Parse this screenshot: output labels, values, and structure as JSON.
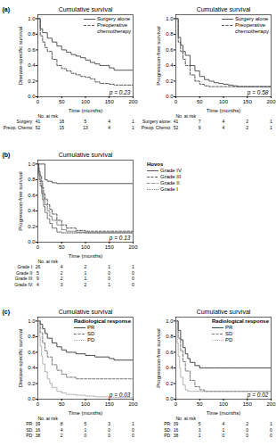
{
  "chart_data": [
    {
      "type": "step",
      "panel_label": "(a)",
      "title": "Cumulative survival",
      "xlabel": "Time (months)",
      "ylabel": "Disease-specific survival",
      "xlim": [
        0,
        200
      ],
      "xticks": [
        0,
        50,
        100,
        150,
        200
      ],
      "ylim": [
        0,
        1.05
      ],
      "yticks": [
        {
          "value": 0,
          "label": "0.0"
        },
        0.2,
        0.4,
        0.6,
        0.8,
        {
          "value": 1,
          "label": "1.0"
        }
      ],
      "grid": false,
      "legend": "upper right",
      "annotation": "p = 0.23",
      "series": [
        {
          "name": "Surgery alone",
          "color": "#444444",
          "line_style": "solid",
          "x": [
            0,
            5,
            10,
            20,
            30,
            40,
            50,
            60,
            70,
            80,
            90,
            100,
            110,
            120,
            130,
            150,
            160,
            200
          ],
          "values": [
            1.0,
            0.87,
            0.82,
            0.75,
            0.7,
            0.65,
            0.6,
            0.57,
            0.54,
            0.52,
            0.5,
            0.47,
            0.44,
            0.42,
            0.4,
            0.37,
            0.34,
            0.26
          ]
        },
        {
          "name": "Preoperative\nchemotherapy",
          "color": "#444444",
          "line_style": "dashed",
          "x": [
            0,
            5,
            10,
            15,
            20,
            30,
            40,
            50,
            60,
            70,
            80,
            90,
            100,
            110,
            120,
            130,
            150,
            160,
            200
          ],
          "values": [
            1.0,
            0.78,
            0.7,
            0.63,
            0.58,
            0.48,
            0.4,
            0.36,
            0.33,
            0.3,
            0.28,
            0.26,
            0.25,
            0.23,
            0.19,
            0.17,
            0.16,
            0.15,
            0.14
          ]
        }
      ],
      "at_risk": {
        "title": "No. at risk",
        "times": [
          0,
          50,
          100,
          150,
          200
        ],
        "rows": [
          {
            "name": "Surgery:",
            "values": [
              41,
              18,
              5,
              4,
              1
            ]
          },
          {
            "name": "Preop. Chemo:",
            "values": [
              52,
              15,
              13,
              4,
              1
            ]
          }
        ]
      }
    },
    {
      "type": "step",
      "title": "Cumulative survival",
      "xlabel": "Time (months)",
      "ylabel": "Progression-free survival",
      "xlim": [
        0,
        200
      ],
      "xticks": [
        0,
        50,
        100,
        150,
        200
      ],
      "ylim": [
        0,
        1.05
      ],
      "yticks": [
        {
          "value": 0,
          "label": "0.0"
        },
        0.2,
        0.4,
        0.6,
        0.8,
        {
          "value": 1,
          "label": "1.0"
        }
      ],
      "grid": false,
      "legend": "upper right",
      "annotation": "p = 0.58",
      "series": [
        {
          "name": "Surgery alone",
          "color": "#444444",
          "line_style": "solid",
          "x": [
            0,
            5,
            10,
            15,
            20,
            30,
            40,
            50,
            60,
            70,
            80,
            90,
            100,
            110,
            120,
            130,
            150,
            200
          ],
          "values": [
            1.0,
            0.76,
            0.66,
            0.58,
            0.53,
            0.4,
            0.33,
            0.26,
            0.22,
            0.2,
            0.18,
            0.17,
            0.16,
            0.15,
            0.14,
            0.13,
            0.13,
            0.12
          ]
        },
        {
          "name": "Preoperative\nchemotherapy",
          "color": "#444444",
          "line_style": "dashed",
          "x": [
            0,
            5,
            10,
            15,
            20,
            30,
            40,
            50,
            60,
            70,
            80,
            90,
            100,
            110,
            130,
            150,
            200
          ],
          "values": [
            1.0,
            0.7,
            0.58,
            0.48,
            0.4,
            0.28,
            0.2,
            0.16,
            0.14,
            0.13,
            0.13,
            0.13,
            0.13,
            0.13,
            0.13,
            0.13,
            0.13
          ]
        }
      ],
      "at_risk": {
        "title": "No. at risk",
        "times": [
          0,
          50,
          100,
          150,
          200
        ],
        "rows": [
          {
            "name": "Surgery alone:",
            "values": [
              41,
              7,
              4,
              2,
              1
            ]
          },
          {
            "name": "Preop. Chemo:",
            "values": [
              52,
              9,
              4,
              2,
              1
            ]
          }
        ]
      }
    },
    {
      "type": "step",
      "panel_label": "(b)",
      "title": "Cumulative survival",
      "xlabel": "Time (months)",
      "ylabel": "Progression-free survival",
      "xlim": [
        0,
        200
      ],
      "xticks": [
        0,
        50,
        100,
        150,
        200
      ],
      "ylim": [
        0,
        1.05
      ],
      "yticks": [
        {
          "value": 0,
          "label": "0.0"
        },
        0.2,
        0.4,
        0.6,
        0.8,
        {
          "value": 1,
          "label": "1.0"
        }
      ],
      "grid": false,
      "legend": "right",
      "legend_title": "Huvos",
      "annotation": "p = 0.13",
      "series": [
        {
          "name": "Grade IV",
          "color": "#444444",
          "line_style": "solid",
          "x": [
            0,
            3,
            5,
            10,
            15,
            20,
            30,
            40,
            50,
            100,
            150,
            200
          ],
          "values": [
            1.0,
            1.0,
            1.0,
            1.0,
            0.8,
            0.78,
            0.76,
            0.75,
            0.75,
            0.75,
            0.75,
            0.75
          ]
        },
        {
          "name": "Grade III",
          "color": "#444444",
          "line_style": "dashed",
          "x": [
            0,
            2,
            3,
            5,
            8,
            10,
            12,
            15,
            20,
            25,
            30,
            40,
            50,
            60,
            80,
            100,
            120,
            150,
            200
          ],
          "values": [
            1.0,
            0.95,
            0.9,
            0.85,
            0.78,
            0.7,
            0.62,
            0.55,
            0.48,
            0.42,
            0.36,
            0.28,
            0.22,
            0.18,
            0.15,
            0.14,
            0.14,
            0.14,
            0.14
          ]
        },
        {
          "name": "Grade II",
          "color": "#777777",
          "line_style": "dashdot",
          "x": [
            0,
            2,
            3,
            5,
            8,
            10,
            12,
            15,
            20,
            25,
            30,
            40,
            50,
            60,
            80,
            100,
            120,
            150,
            200
          ],
          "values": [
            1.0,
            0.92,
            0.85,
            0.78,
            0.7,
            0.62,
            0.55,
            0.48,
            0.4,
            0.33,
            0.28,
            0.22,
            0.16,
            0.14,
            0.13,
            0.12,
            0.12,
            0.12,
            0.12
          ]
        },
        {
          "name": "Grade I",
          "color": "#444444",
          "line_style": "dotted",
          "x": [
            0,
            2,
            3,
            5,
            8,
            10,
            12,
            15,
            20,
            25,
            30,
            40,
            50,
            60,
            80,
            100,
            120,
            150,
            200
          ],
          "values": [
            1.0,
            0.88,
            0.8,
            0.72,
            0.62,
            0.54,
            0.46,
            0.38,
            0.3,
            0.24,
            0.18,
            0.13,
            0.12,
            0.12,
            0.12,
            0.12,
            0.12,
            0.12,
            0.12
          ]
        }
      ],
      "at_risk": {
        "title": "No. at risk",
        "times": [
          0,
          50,
          100,
          150,
          200
        ],
        "rows": [
          {
            "name": "Grade I:",
            "values": [
              26,
              4,
              2,
              1,
              1
            ]
          },
          {
            "name": "Grade II:",
            "values": [
              5,
              2,
              1,
              0,
              0
            ]
          },
          {
            "name": "Grade III:",
            "values": [
              9,
              2,
              1,
              0,
              0
            ]
          },
          {
            "name": "Grade IV:",
            "values": [
              4,
              3,
              2,
              1,
              0
            ]
          }
        ]
      }
    },
    {
      "type": "step",
      "panel_label": "(c)",
      "title": "Cumulative survival",
      "xlabel": "Time (months)",
      "ylabel": "Disease-specific survival",
      "xlim": [
        0,
        200
      ],
      "xticks": [
        0,
        50,
        100,
        150,
        200
      ],
      "ylim": [
        0,
        1.05
      ],
      "yticks": [
        {
          "value": 0,
          "label": "0.0"
        },
        0.2,
        0.4,
        0.6,
        0.8,
        {
          "value": 1,
          "label": "1.0"
        }
      ],
      "grid": false,
      "legend": "upper right",
      "legend_title": "Radiological response",
      "annotation": "p = 0.03",
      "series": [
        {
          "name": "PR",
          "color": "#333333",
          "line_style": "solid",
          "x": [
            0,
            5,
            10,
            15,
            20,
            30,
            40,
            50,
            60,
            80,
            100,
            120,
            150,
            160,
            200
          ],
          "values": [
            1.0,
            0.96,
            0.9,
            0.84,
            0.78,
            0.72,
            0.67,
            0.63,
            0.6,
            0.58,
            0.56,
            0.54,
            0.52,
            0.5,
            0.5
          ]
        },
        {
          "name": "SD",
          "color": "#666666",
          "line_style": "dashed",
          "x": [
            0,
            5,
            10,
            15,
            20,
            30,
            40,
            50,
            60,
            80,
            100,
            120,
            150,
            200
          ],
          "values": [
            1.0,
            0.85,
            0.72,
            0.62,
            0.54,
            0.44,
            0.37,
            0.32,
            0.28,
            0.26,
            0.26,
            0.26,
            0.26,
            0.26
          ]
        },
        {
          "name": "PD",
          "color": "#999999",
          "line_style": "dotted",
          "x": [
            0,
            3,
            5,
            8,
            10,
            15,
            20,
            25,
            30,
            40,
            50,
            60,
            80,
            100,
            120,
            150,
            200
          ],
          "values": [
            1.0,
            0.8,
            0.68,
            0.55,
            0.45,
            0.35,
            0.26,
            0.2,
            0.15,
            0.1,
            0.08,
            0.06,
            0.05,
            0.04,
            0.03,
            0.02,
            0.02
          ]
        }
      ],
      "at_risk": {
        "title": "No. at risk",
        "times": [
          0,
          50,
          100,
          150,
          200
        ],
        "rows": [
          {
            "name": "PR:",
            "values": [
              39,
              8,
              5,
              3,
              1
            ]
          },
          {
            "name": "SD:",
            "values": [
              16,
              4,
              1,
              0,
              0
            ]
          },
          {
            "name": "PD:",
            "values": [
              38,
              2,
              0,
              0,
              0
            ]
          }
        ]
      }
    },
    {
      "type": "step",
      "title": "Cumulative survival",
      "xlabel": "Time (months)",
      "ylabel": "Progression-free survival",
      "xlim": [
        0,
        200
      ],
      "xticks": [
        0,
        50,
        100,
        150,
        200
      ],
      "ylim": [
        0,
        1.05
      ],
      "yticks": [
        {
          "value": 0,
          "label": "0.0"
        },
        0.2,
        0.4,
        0.6,
        0.8,
        {
          "value": 1,
          "label": "1.0"
        }
      ],
      "grid": false,
      "legend": "upper right",
      "legend_title": "Radiological response",
      "annotation": "p = 0.02",
      "series": [
        {
          "name": "PR",
          "color": "#333333",
          "line_style": "solid",
          "x": [
            0,
            5,
            10,
            15,
            20,
            25,
            30,
            40,
            50,
            60,
            80,
            100,
            120,
            150,
            200
          ],
          "values": [
            1.0,
            0.88,
            0.76,
            0.66,
            0.58,
            0.52,
            0.47,
            0.43,
            0.4,
            0.4,
            0.4,
            0.4,
            0.4,
            0.4,
            0.4
          ]
        },
        {
          "name": "SD",
          "color": "#666666",
          "line_style": "dashed",
          "x": [
            0,
            5,
            10,
            15,
            20,
            30,
            40,
            50,
            60,
            80,
            100,
            120,
            150,
            200
          ],
          "values": [
            1.0,
            0.78,
            0.62,
            0.48,
            0.36,
            0.24,
            0.16,
            0.12,
            0.1,
            0.1,
            0.1,
            0.1,
            0.1,
            0.1
          ]
        },
        {
          "name": "PD",
          "color": "#999999",
          "line_style": "dotted",
          "x": [
            0,
            3,
            5,
            8,
            10,
            15,
            20,
            25,
            30,
            40,
            50,
            60,
            80,
            100,
            150,
            200
          ],
          "values": [
            1.0,
            0.72,
            0.55,
            0.4,
            0.28,
            0.18,
            0.12,
            0.1,
            0.1,
            0.1,
            0.1,
            0.1,
            0.1,
            0.1,
            0.1,
            0.1
          ]
        }
      ],
      "at_risk": {
        "title": "No. at risk",
        "times": [
          0,
          50,
          100,
          150,
          200
        ],
        "rows": [
          {
            "name": "PR:",
            "values": [
              39,
              5,
              4,
              2,
              1
            ]
          },
          {
            "name": "SD:",
            "values": [
              16,
              3,
              1,
              0,
              0
            ]
          },
          {
            "name": "PD:",
            "values": [
              38,
              1,
              0,
              0,
              0
            ]
          }
        ]
      }
    }
  ]
}
